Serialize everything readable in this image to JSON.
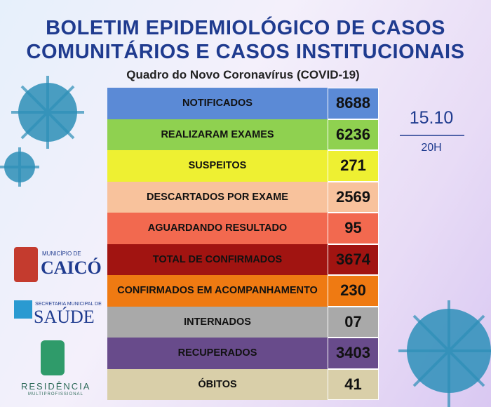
{
  "header": {
    "title_line1": "BOLETIM EPIDEMIOLÓGICO DE CASOS",
    "title_line2": "COMUNITÁRIOS E CASOS INSTITUCIONAIS",
    "subtitle": "Quadro do Novo Coronavírus (COVID-19)"
  },
  "date": {
    "day": "15.10",
    "hour": "20H"
  },
  "table": {
    "rows": [
      {
        "label": "NOTIFICADOS",
        "value": "8688",
        "color": "#5b8ad6"
      },
      {
        "label": "REALIZARAM EXAMES",
        "value": "6236",
        "color": "#8fd150"
      },
      {
        "label": "SUSPEITOS",
        "value": "271",
        "color": "#eef032"
      },
      {
        "label": "DESCARTADOS POR EXAME",
        "value": "2569",
        "color": "#f8c29c"
      },
      {
        "label": "AGUARDANDO RESULTADO",
        "value": "95",
        "color": "#f2694f"
      },
      {
        "label": "TOTAL DE CONFIRMADOS",
        "value": "3674",
        "color": "#a11411"
      },
      {
        "label": "CONFIRMADOS EM ACOMPANHAMENTO",
        "value": "230",
        "color": "#ef7a12"
      },
      {
        "label": "INTERNADOS",
        "value": "07",
        "color": "#a9a9a9"
      },
      {
        "label": "RECUPERADOS",
        "value": "3403",
        "color": "#684b8b"
      },
      {
        "label": "ÓBITOS",
        "value": "41",
        "color": "#d9cfa9"
      }
    ]
  },
  "logos": {
    "caico_small": "MUNICÍPIO DE",
    "caico": "CAICÓ",
    "saude_small": "SECRETARIA MUNICIPAL DE",
    "saude": "SAÚDE",
    "residencia": "RESIDÊNCIA",
    "residencia_small": "MULTIPROFISSIONAL"
  }
}
